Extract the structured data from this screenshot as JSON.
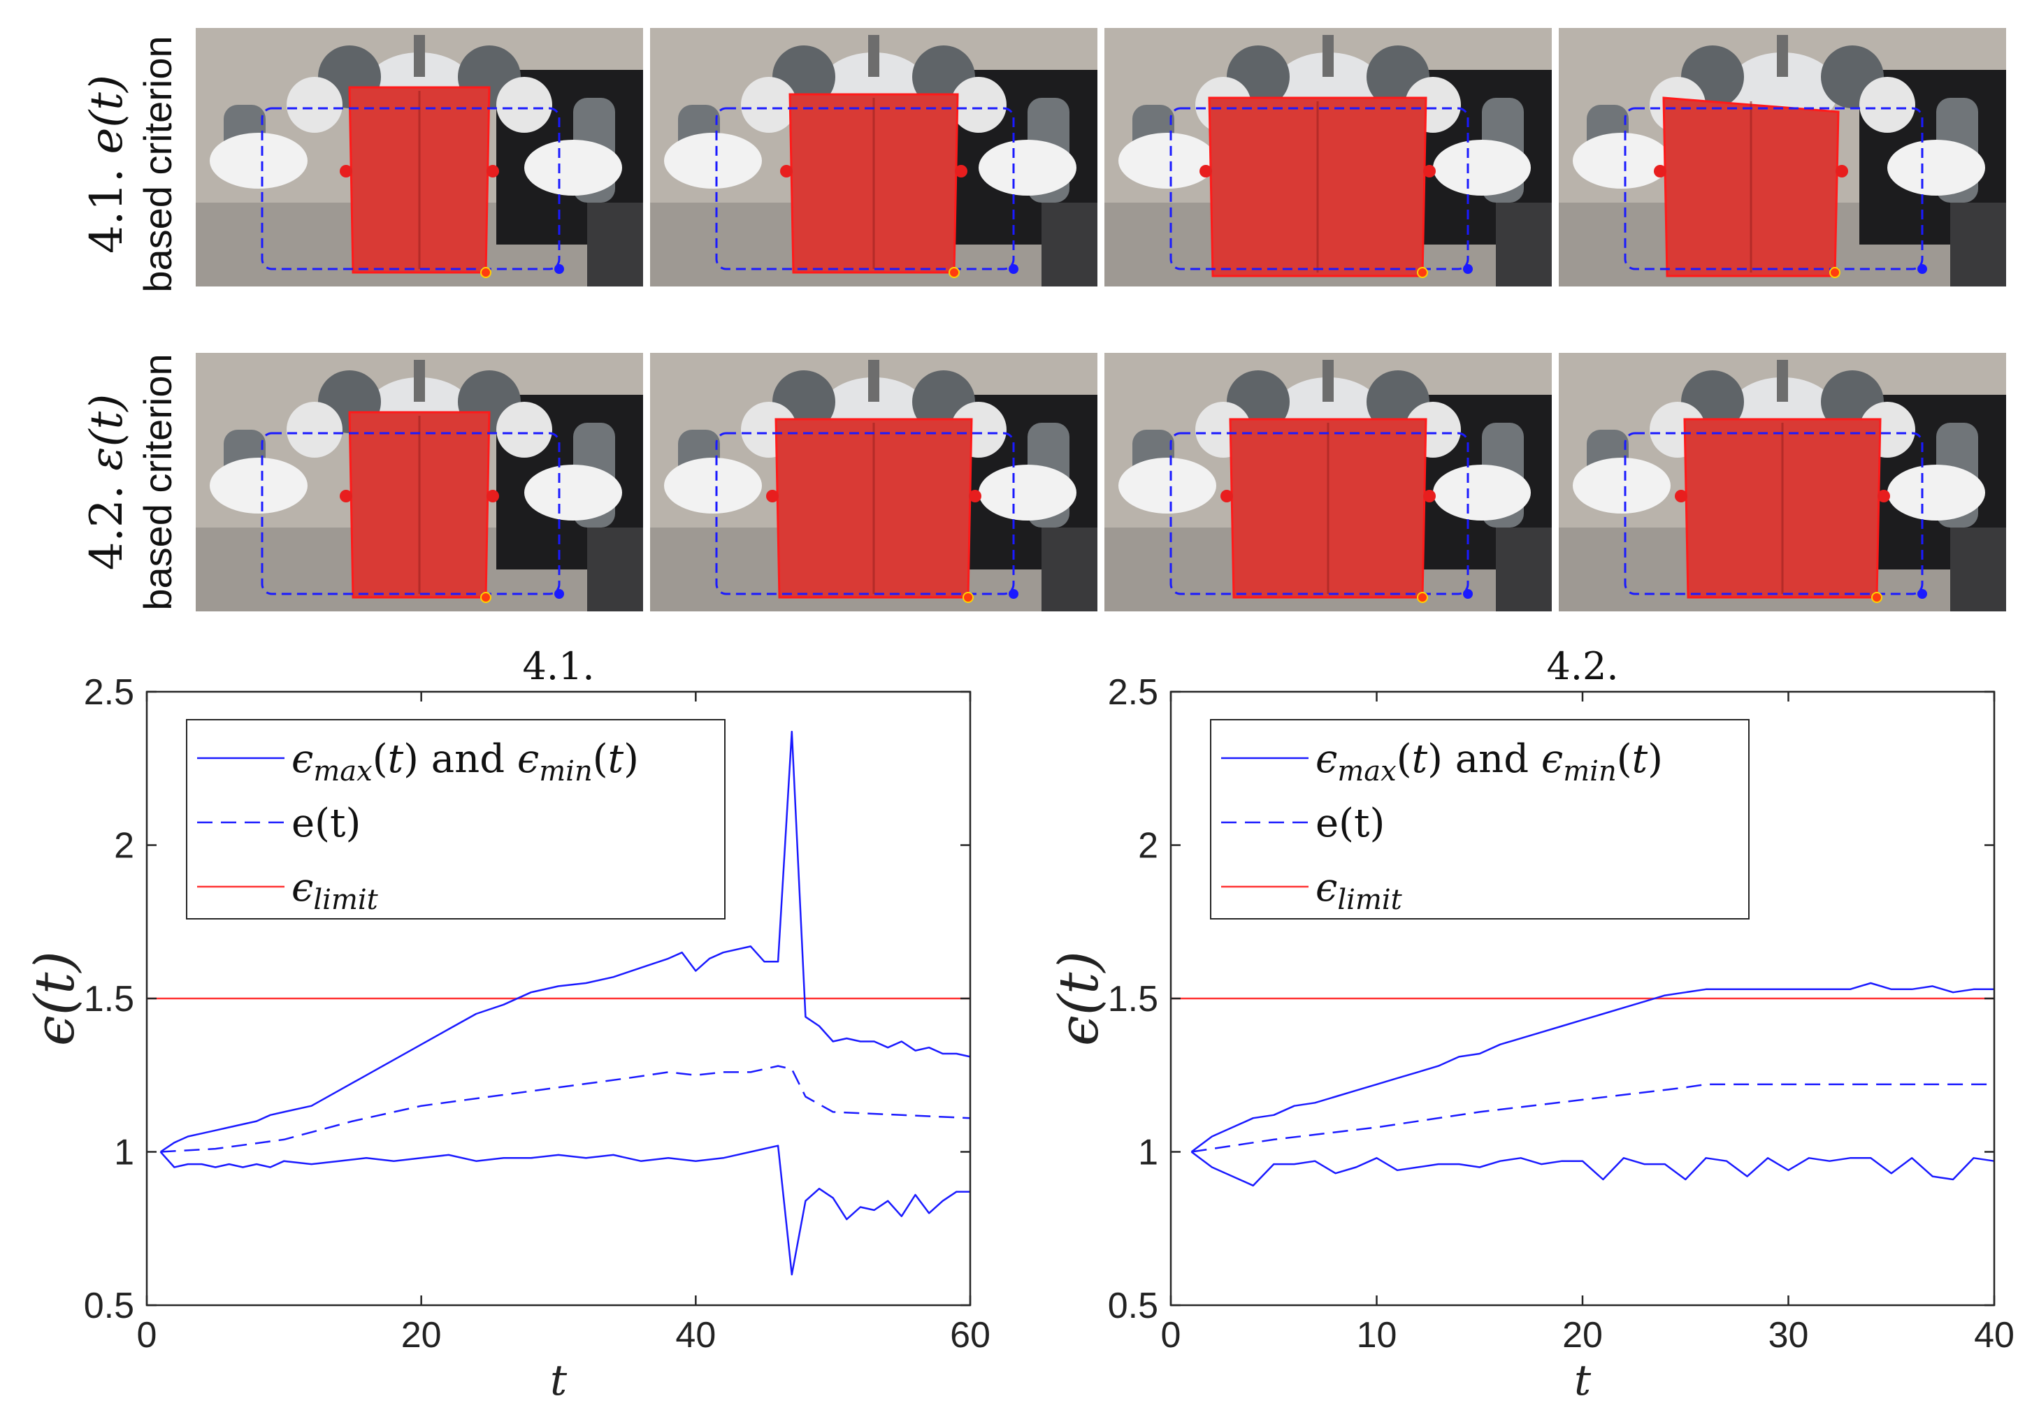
{
  "rows": [
    {
      "label_num": "4.1.",
      "label_sym": "e(t)",
      "label_text": "based criterion",
      "frames": [
        {
          "name": "frame-4-1-a",
          "state": "folded-narrow"
        },
        {
          "name": "frame-4-1-b",
          "state": "folded-medium"
        },
        {
          "name": "frame-4-1-c",
          "state": "stretched-wide"
        },
        {
          "name": "frame-4-1-d",
          "state": "stretched-tilted"
        }
      ]
    },
    {
      "label_num": "4.2.",
      "label_sym": "ε(t)",
      "label_text": "based criterion",
      "frames": [
        {
          "name": "frame-4-2-a",
          "state": "folded-narrow"
        },
        {
          "name": "frame-4-2-b",
          "state": "folded-wide"
        },
        {
          "name": "frame-4-2-c",
          "state": "folded-wide"
        },
        {
          "name": "frame-4-2-d",
          "state": "folded-wide"
        }
      ]
    }
  ],
  "colors": {
    "series": "#1a1aff",
    "limit": "#ff3333",
    "cloth": "#d93a35",
    "axis": "#262626"
  },
  "legend": {
    "emax": "ϵmax(t) and ϵmin(t)",
    "e": "e(t)",
    "limit": "ϵlimit"
  },
  "chart_data": [
    {
      "type": "line",
      "title": "4.1.",
      "xlabel": "t",
      "ylabel": "ϵ(t)",
      "xlim": [
        0,
        60
      ],
      "ylim": [
        0.5,
        2.5
      ],
      "xticks": [
        0,
        20,
        40,
        60
      ],
      "yticks": [
        0.5,
        1,
        1.5,
        2,
        2.5
      ],
      "limit": 1.5,
      "series": [
        {
          "name": "ϵmax(t)",
          "style": "solid",
          "x": [
            1,
            2,
            3,
            4,
            5,
            6,
            7,
            8,
            9,
            10,
            12,
            14,
            16,
            18,
            20,
            22,
            24,
            26,
            28,
            30,
            32,
            34,
            36,
            38,
            39,
            40,
            41,
            42,
            44,
            45,
            46,
            47,
            48,
            49,
            50,
            51,
            52,
            53,
            54,
            55,
            56,
            57,
            58,
            59,
            60
          ],
          "y": [
            1.0,
            1.03,
            1.05,
            1.06,
            1.07,
            1.08,
            1.09,
            1.1,
            1.12,
            1.13,
            1.15,
            1.2,
            1.25,
            1.3,
            1.35,
            1.4,
            1.45,
            1.48,
            1.52,
            1.54,
            1.55,
            1.57,
            1.6,
            1.63,
            1.65,
            1.59,
            1.63,
            1.65,
            1.67,
            1.62,
            1.62,
            2.37,
            1.44,
            1.41,
            1.36,
            1.37,
            1.36,
            1.36,
            1.34,
            1.36,
            1.33,
            1.34,
            1.32,
            1.32,
            1.31
          ]
        },
        {
          "name": "ϵmin(t)",
          "style": "solid",
          "x": [
            1,
            2,
            3,
            4,
            5,
            6,
            7,
            8,
            9,
            10,
            12,
            14,
            16,
            18,
            20,
            22,
            24,
            26,
            28,
            30,
            32,
            34,
            36,
            38,
            40,
            42,
            44,
            46,
            47,
            48,
            49,
            50,
            51,
            52,
            53,
            54,
            55,
            56,
            57,
            58,
            59,
            60
          ],
          "y": [
            1.0,
            0.95,
            0.96,
            0.96,
            0.95,
            0.96,
            0.95,
            0.96,
            0.95,
            0.97,
            0.96,
            0.97,
            0.98,
            0.97,
            0.98,
            0.99,
            0.97,
            0.98,
            0.98,
            0.99,
            0.98,
            0.99,
            0.97,
            0.98,
            0.97,
            0.98,
            1.0,
            1.02,
            0.6,
            0.84,
            0.88,
            0.85,
            0.78,
            0.82,
            0.81,
            0.84,
            0.79,
            0.86,
            0.8,
            0.84,
            0.87,
            0.87
          ]
        },
        {
          "name": "e(t)",
          "style": "dashed",
          "x": [
            1,
            5,
            10,
            15,
            20,
            25,
            30,
            35,
            38,
            40,
            42,
            44,
            46,
            47,
            48,
            50,
            55,
            60
          ],
          "y": [
            1.0,
            1.01,
            1.04,
            1.1,
            1.15,
            1.18,
            1.21,
            1.24,
            1.26,
            1.25,
            1.26,
            1.26,
            1.28,
            1.27,
            1.18,
            1.13,
            1.12,
            1.11
          ]
        }
      ]
    },
    {
      "type": "line",
      "title": "4.2.",
      "xlabel": "t",
      "ylabel": "ϵ(t)",
      "xlim": [
        0,
        40
      ],
      "ylim": [
        0.5,
        2.5
      ],
      "xticks": [
        0,
        10,
        20,
        30,
        40
      ],
      "yticks": [
        0.5,
        1,
        1.5,
        2,
        2.5
      ],
      "limit": 1.5,
      "series": [
        {
          "name": "ϵmax(t)",
          "style": "solid",
          "x": [
            1,
            2,
            3,
            4,
            5,
            6,
            7,
            8,
            9,
            10,
            11,
            12,
            13,
            14,
            15,
            16,
            17,
            18,
            19,
            20,
            21,
            22,
            23,
            24,
            25,
            26,
            27,
            28,
            29,
            30,
            31,
            32,
            33,
            34,
            35,
            36,
            37,
            38,
            39,
            40
          ],
          "y": [
            1.0,
            1.05,
            1.08,
            1.11,
            1.12,
            1.15,
            1.16,
            1.18,
            1.2,
            1.22,
            1.24,
            1.26,
            1.28,
            1.31,
            1.32,
            1.35,
            1.37,
            1.39,
            1.41,
            1.43,
            1.45,
            1.47,
            1.49,
            1.51,
            1.52,
            1.53,
            1.53,
            1.53,
            1.53,
            1.53,
            1.53,
            1.53,
            1.53,
            1.55,
            1.53,
            1.53,
            1.54,
            1.52,
            1.53,
            1.53
          ]
        },
        {
          "name": "ϵmin(t)",
          "style": "solid",
          "x": [
            1,
            2,
            3,
            4,
            5,
            6,
            7,
            8,
            9,
            10,
            11,
            12,
            13,
            14,
            15,
            16,
            17,
            18,
            19,
            20,
            21,
            22,
            23,
            24,
            25,
            26,
            27,
            28,
            29,
            30,
            31,
            32,
            33,
            34,
            35,
            36,
            37,
            38,
            39,
            40
          ],
          "y": [
            1.0,
            0.95,
            0.92,
            0.89,
            0.96,
            0.96,
            0.97,
            0.93,
            0.95,
            0.98,
            0.94,
            0.95,
            0.96,
            0.96,
            0.95,
            0.97,
            0.98,
            0.96,
            0.97,
            0.97,
            0.91,
            0.98,
            0.96,
            0.96,
            0.91,
            0.98,
            0.97,
            0.92,
            0.98,
            0.94,
            0.98,
            0.97,
            0.98,
            0.98,
            0.93,
            0.98,
            0.92,
            0.91,
            0.98,
            0.97
          ]
        },
        {
          "name": "e(t)",
          "style": "dashed",
          "x": [
            1,
            5,
            10,
            15,
            20,
            25,
            26,
            30,
            35,
            40
          ],
          "y": [
            1.0,
            1.04,
            1.08,
            1.13,
            1.17,
            1.21,
            1.22,
            1.22,
            1.22,
            1.22
          ]
        }
      ]
    }
  ]
}
